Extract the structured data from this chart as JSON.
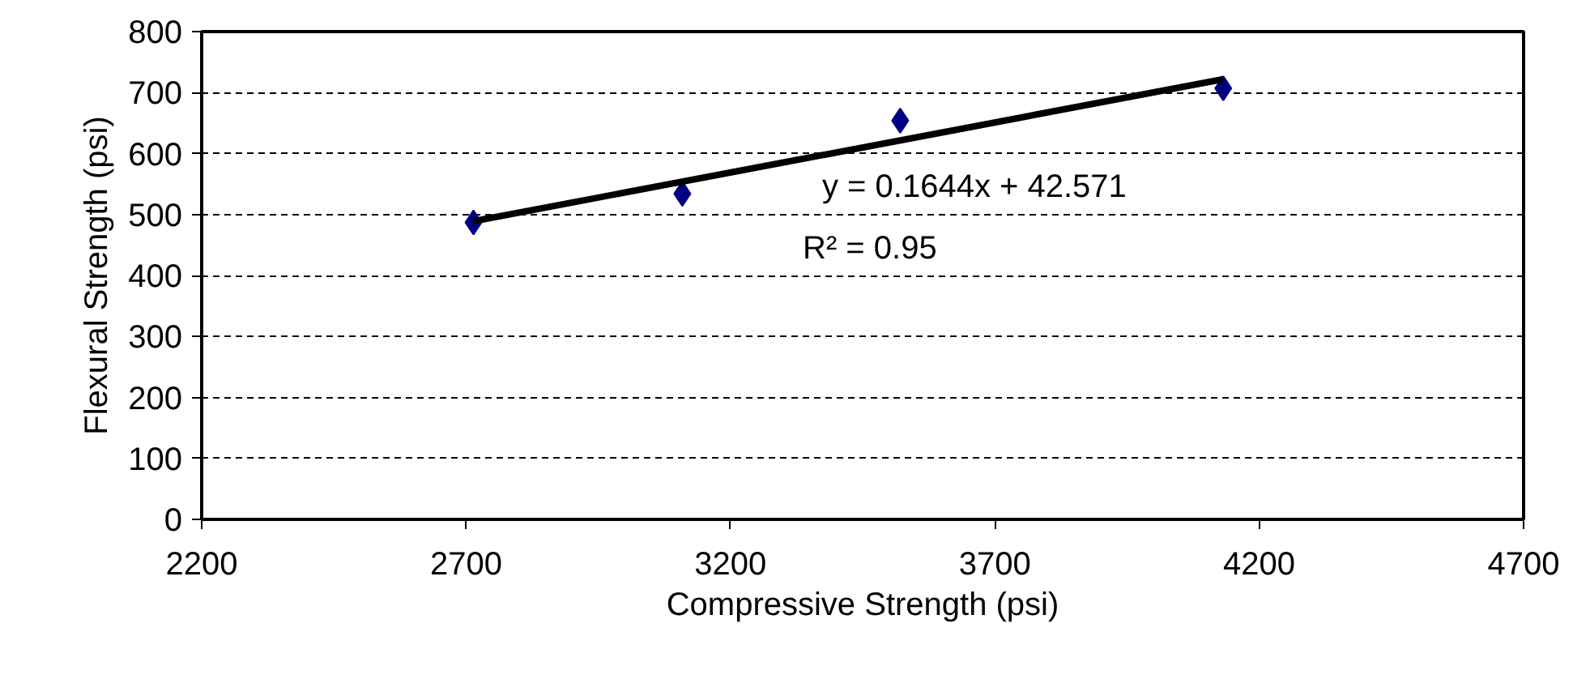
{
  "chart_data": {
    "type": "scatter",
    "xlabel": "Compressive Strength (psi)",
    "ylabel": "Flexural Strength (psi)",
    "xlim": [
      2200,
      4700
    ],
    "xticks": [
      2200,
      2700,
      3200,
      3700,
      4200,
      4700
    ],
    "ylim": [
      0,
      800
    ],
    "yticks": [
      0,
      100,
      200,
      300,
      400,
      500,
      600,
      700,
      800
    ],
    "grid": "y",
    "marker": "diamond",
    "series": [
      {
        "color": "#000080",
        "x": [
          2714,
          3109,
          3521,
          4132
        ],
        "values": [
          487,
          534,
          654,
          707
        ]
      },
      {
        "type": "line",
        "color": "#000000",
        "line_style": "solid",
        "marker": "none",
        "x": [
          2714,
          4132
        ],
        "values": [
          489,
          722
        ]
      }
    ],
    "annotations": [
      "y = 0.1644x + 42.571",
      "R² = 0.95"
    ]
  }
}
